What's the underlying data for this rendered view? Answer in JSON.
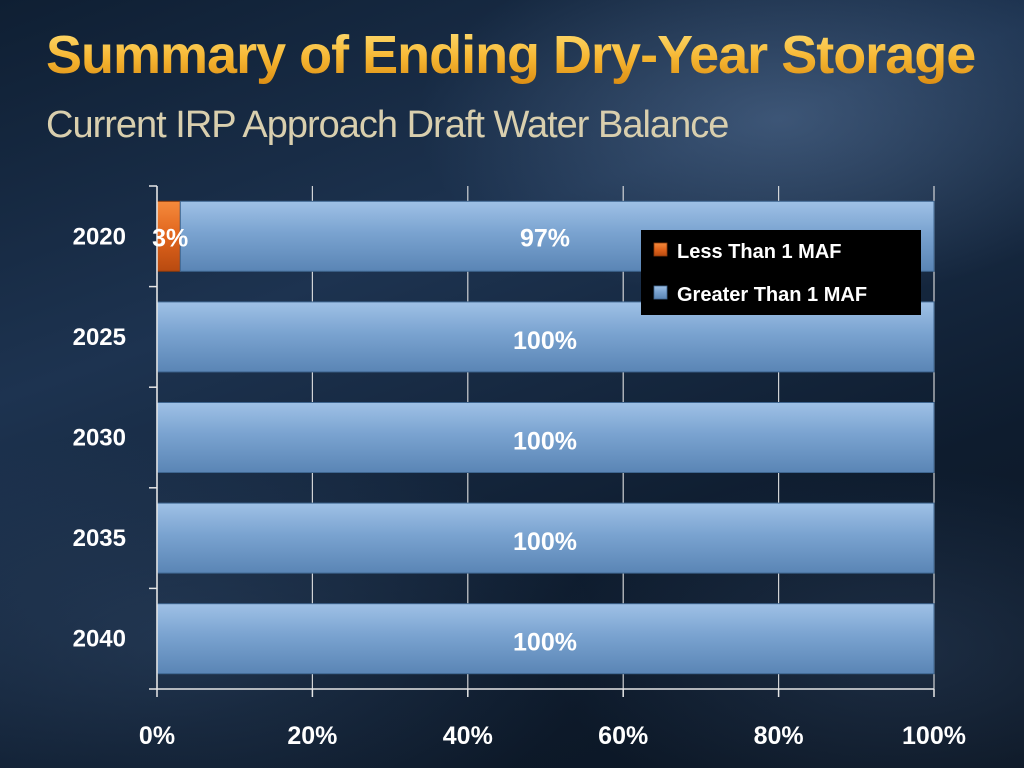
{
  "slide": {
    "title": "Summary of Ending Dry-Year Storage",
    "subtitle": "Current IRP Approach Draft  Water Balance"
  },
  "colors": {
    "less_than": "#e0641c",
    "greater_than": "#7aa3d0",
    "axis": "#e6e6e6",
    "label_text": "#ffffff",
    "legend_bg": "#000000"
  },
  "chart_data": {
    "type": "bar",
    "orientation": "horizontal",
    "stacked": true,
    "categories": [
      "2020",
      "2025",
      "2030",
      "2035",
      "2040"
    ],
    "series": [
      {
        "name": "Less Than 1 MAF",
        "values": [
          3,
          0,
          0,
          0,
          0
        ],
        "labels": [
          "3%",
          "",
          "",
          "",
          ""
        ]
      },
      {
        "name": "Greater Than 1 MAF",
        "values": [
          97,
          100,
          100,
          100,
          100
        ],
        "labels": [
          "97%",
          "100%",
          "100%",
          "100%",
          "100%"
        ]
      }
    ],
    "x_ticks": [
      "0%",
      "20%",
      "40%",
      "60%",
      "80%",
      "100%"
    ],
    "xlim": [
      0,
      100
    ],
    "grid": true,
    "legend_position": "top-right",
    "title": "",
    "xlabel": "",
    "ylabel": ""
  }
}
